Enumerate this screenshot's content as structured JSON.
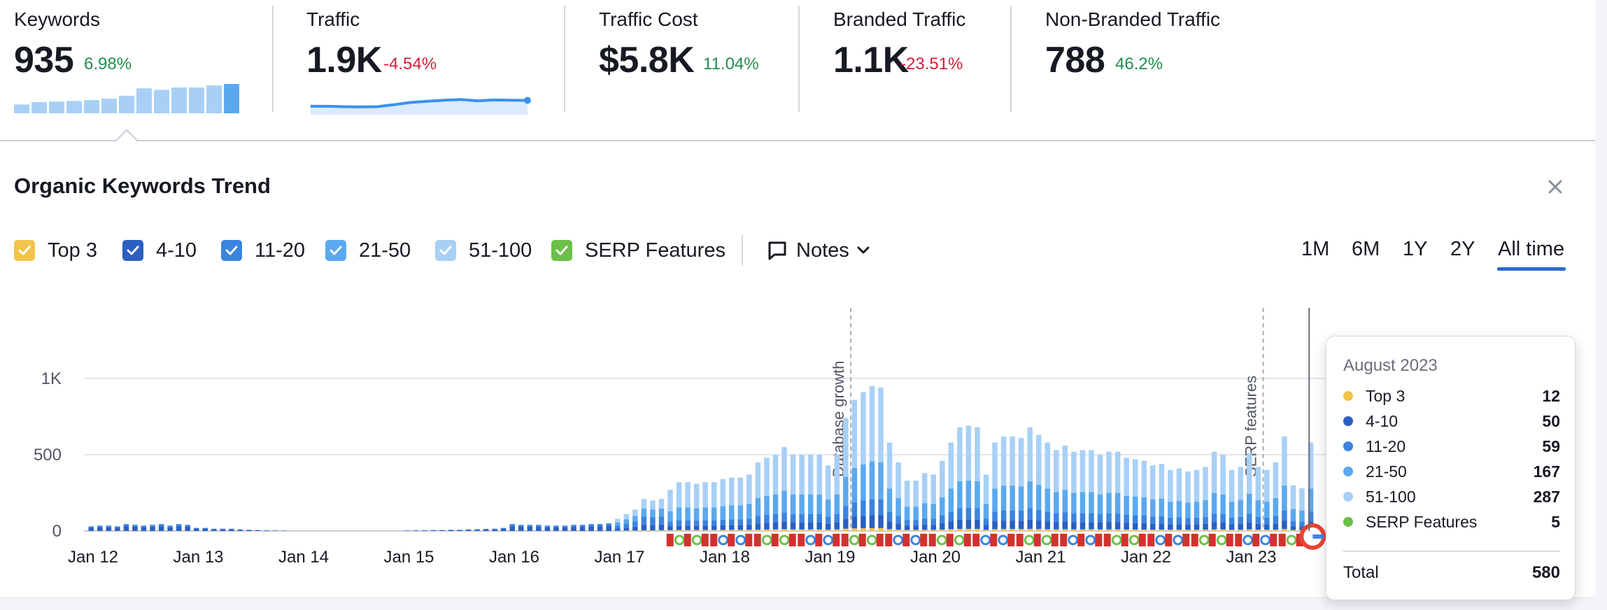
{
  "metrics": [
    {
      "label": "Keywords",
      "value": "935",
      "delta": "6.98%",
      "trend": "up"
    },
    {
      "label": "Traffic",
      "value": "1.9K",
      "delta": "-4.54%",
      "trend": "down"
    },
    {
      "label": "Traffic Cost",
      "value": "$5.8K",
      "delta": "11.04%",
      "trend": "up"
    },
    {
      "label": "Branded Traffic",
      "value": "1.1K",
      "delta": "-23.51%",
      "trend": "down"
    },
    {
      "label": "Non-Branded Traffic",
      "value": "788",
      "delta": "46.2%",
      "trend": "up"
    }
  ],
  "sparklines": {
    "keywords_bars": [
      0.3,
      0.38,
      0.4,
      0.42,
      0.45,
      0.5,
      0.6,
      0.85,
      0.8,
      0.88,
      0.88,
      0.95,
      1.0
    ],
    "traffic_line": [
      0.38,
      0.38,
      0.36,
      0.35,
      0.36,
      0.45,
      0.55,
      0.6,
      0.65,
      0.68,
      0.62,
      0.66,
      0.65,
      0.64
    ]
  },
  "panel": {
    "title": "Organic Keywords Trend",
    "legend": [
      {
        "label": "Top 3",
        "color": "#f3c44a"
      },
      {
        "label": "4-10",
        "color": "#2b5fbf"
      },
      {
        "label": "11-20",
        "color": "#3a84e0"
      },
      {
        "label": "21-50",
        "color": "#5aa9ee"
      },
      {
        "label": "51-100",
        "color": "#a8d0f6"
      },
      {
        "label": "SERP Features",
        "color": "#6cc04a"
      }
    ],
    "notes_label": "Notes",
    "ranges": [
      "1M",
      "6M",
      "1Y",
      "2Y",
      "All time"
    ],
    "active_range": "All time"
  },
  "chart_data": {
    "type": "bar",
    "stacked": true,
    "y_ticks": [
      "1K",
      "500",
      "0"
    ],
    "ylim": [
      0,
      1000
    ],
    "x_ticks": [
      "Jan 12",
      "Jan 13",
      "Jan 14",
      "Jan 15",
      "Jan 16",
      "Jan 17",
      "Jan 18",
      "Jan 19",
      "Jan 20",
      "Jan 21",
      "Jan 22",
      "Jan 23"
    ],
    "x_range": [
      "2012-01",
      "2023-08"
    ],
    "annotations": [
      {
        "text": "Database growth",
        "x": "2019-04"
      },
      {
        "text": "SERP features",
        "x": "2023-03"
      }
    ],
    "series": [
      {
        "name": "Top 3",
        "color": "#f3c44a"
      },
      {
        "name": "4-10",
        "color": "#2b5fbf"
      },
      {
        "name": "11-20",
        "color": "#3a84e0"
      },
      {
        "name": "21-50",
        "color": "#5aa9ee"
      },
      {
        "name": "51-100",
        "color": "#a8d0f6"
      }
    ],
    "monthly_totals": [
      [
        2012,
        [
          30,
          35,
          35,
          30,
          45,
          40,
          35,
          40,
          45,
          35,
          45,
          40
        ]
      ],
      [
        2013,
        [
          20,
          20,
          15,
          15,
          15,
          10,
          8,
          6,
          4,
          3,
          2,
          0
        ]
      ],
      [
        2014,
        [
          0,
          0,
          0,
          0,
          0,
          0,
          0,
          0,
          0,
          0,
          0,
          0
        ]
      ],
      [
        2015,
        [
          3,
          4,
          5,
          6,
          6,
          8,
          8,
          10,
          12,
          14,
          15,
          20
        ]
      ],
      [
        2016,
        [
          45,
          40,
          40,
          40,
          35,
          35,
          35,
          40,
          40,
          45,
          45,
          50
        ]
      ],
      [
        2017,
        [
          80,
          110,
          140,
          210,
          200,
          210,
          270,
          320,
          320,
          310,
          320,
          320
        ]
      ],
      [
        2018,
        [
          340,
          350,
          350,
          370,
          450,
          480,
          500,
          550,
          500,
          500,
          500,
          500
        ]
      ],
      [
        2019,
        [
          430,
          500,
          740,
          860,
          910,
          950,
          940,
          580,
          450,
          330,
          330,
          380
        ]
      ],
      [
        2020,
        [
          370,
          460,
          580,
          680,
          690,
          680,
          370,
          580,
          620,
          620,
          610,
          680
        ]
      ],
      [
        2021,
        [
          630,
          580,
          530,
          560,
          520,
          530,
          530,
          500,
          520,
          520,
          480,
          470
        ]
      ],
      [
        2022,
        [
          460,
          430,
          440,
          400,
          410,
          390,
          400,
          420,
          520,
          500,
          400,
          420
        ]
      ],
      [
        2023,
        [
          510,
          420,
          400,
          450,
          620,
          300,
          280,
          580
        ]
      ]
    ],
    "serp_features_start": "2017-07"
  },
  "tooltip": {
    "title": "August 2023",
    "rows": [
      {
        "label": "Top 3",
        "value": "12",
        "color": "#f3c44a"
      },
      {
        "label": "4-10",
        "value": "50",
        "color": "#2b5fbf"
      },
      {
        "label": "11-20",
        "value": "59",
        "color": "#3a84e0"
      },
      {
        "label": "21-50",
        "value": "167",
        "color": "#5aa9ee"
      },
      {
        "label": "51-100",
        "value": "287",
        "color": "#a8d0f6"
      },
      {
        "label": "SERP Features",
        "value": "5",
        "color": "#6cc04a"
      }
    ],
    "total_label": "Total",
    "total_value": "580"
  }
}
